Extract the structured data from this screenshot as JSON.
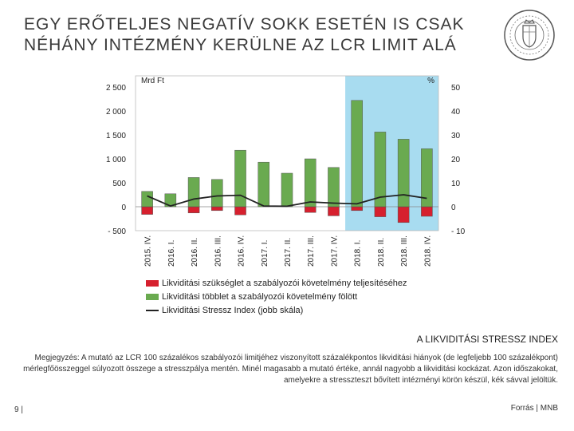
{
  "slide": {
    "title_line1": "EGY ERŐTELJES NEGATÍV SOKK ESETÉN IS CSAK",
    "title_line2": "NÉHÁNY INTÉZMÉNY KERÜLNE AZ LCR LIMIT ALÁ",
    "subtitle": "A LIKVIDITÁSI STRESSZ INDEX",
    "note": "Megjegyzés: A mutató az LCR 100 százalékos szabályozói limitjéhez viszonyított százalékpontos likviditási hiányok (de legfeljebb 100 százalékpont) mérlegfőösszeggel súlyozott összege a stresszpálya mentén. Minél magasabb a mutató értéke, annál nagyobb a likviditási kockázat. Azon időszakokat, amelyekre a stresszteszt bővített intézményi körön készül, kék sávval jelöltük.",
    "page_number": "9 |",
    "source": "Forrás | MNB"
  },
  "logo": {
    "icon": "mnb-seal-icon"
  },
  "chart_data": {
    "type": "bar",
    "categories": [
      "2015. IV.",
      "2016. I.",
      "2016. II.",
      "2016. III.",
      "2016. IV.",
      "2017. I.",
      "2017. II.",
      "2017. III.",
      "2017. IV.",
      "2018. I.",
      "2018. II.",
      "2018. III.",
      "2018. IV."
    ],
    "left_axis_label": "Mrd Ft",
    "right_axis_label": "%",
    "left_ylim": [
      -500,
      2500
    ],
    "right_ylim": [
      -10,
      50
    ],
    "left_ticks": [
      "2 500",
      "2 000",
      "1 500",
      "1 000",
      "500",
      "0",
      "- 500"
    ],
    "right_ticks": [
      "50",
      "40",
      "30",
      "20",
      "10",
      "0",
      "- 10"
    ],
    "highlight_range": [
      "2018. I.",
      "2018. IV."
    ],
    "highlight_color": "#a8dcf0",
    "series": [
      {
        "name": "Likviditási szükséglet a szabályozói követelmény teljesítéséhez",
        "kind": "bar",
        "axis": "left",
        "color": "#d6202e",
        "values": [
          -160,
          0,
          -130,
          -80,
          -170,
          0,
          0,
          -120,
          -190,
          -80,
          -210,
          -330,
          -200
        ]
      },
      {
        "name": "Likviditási többlet a szabályozói követelmény fölött",
        "kind": "bar",
        "axis": "left",
        "color": "#6aaa50",
        "values": [
          320,
          270,
          610,
          570,
          1180,
          930,
          700,
          1000,
          820,
          2220,
          1560,
          1410,
          1210
        ]
      },
      {
        "name": "Likviditási Stressz Index (jobb skála)",
        "kind": "line",
        "axis": "right",
        "color": "#222222",
        "values": [
          4.5,
          0.3,
          3.2,
          4.5,
          4.8,
          0.3,
          0.2,
          2.0,
          1.5,
          1.2,
          4.0,
          5.0,
          3.5
        ]
      }
    ],
    "legend_position": "bottom",
    "grid": false
  }
}
